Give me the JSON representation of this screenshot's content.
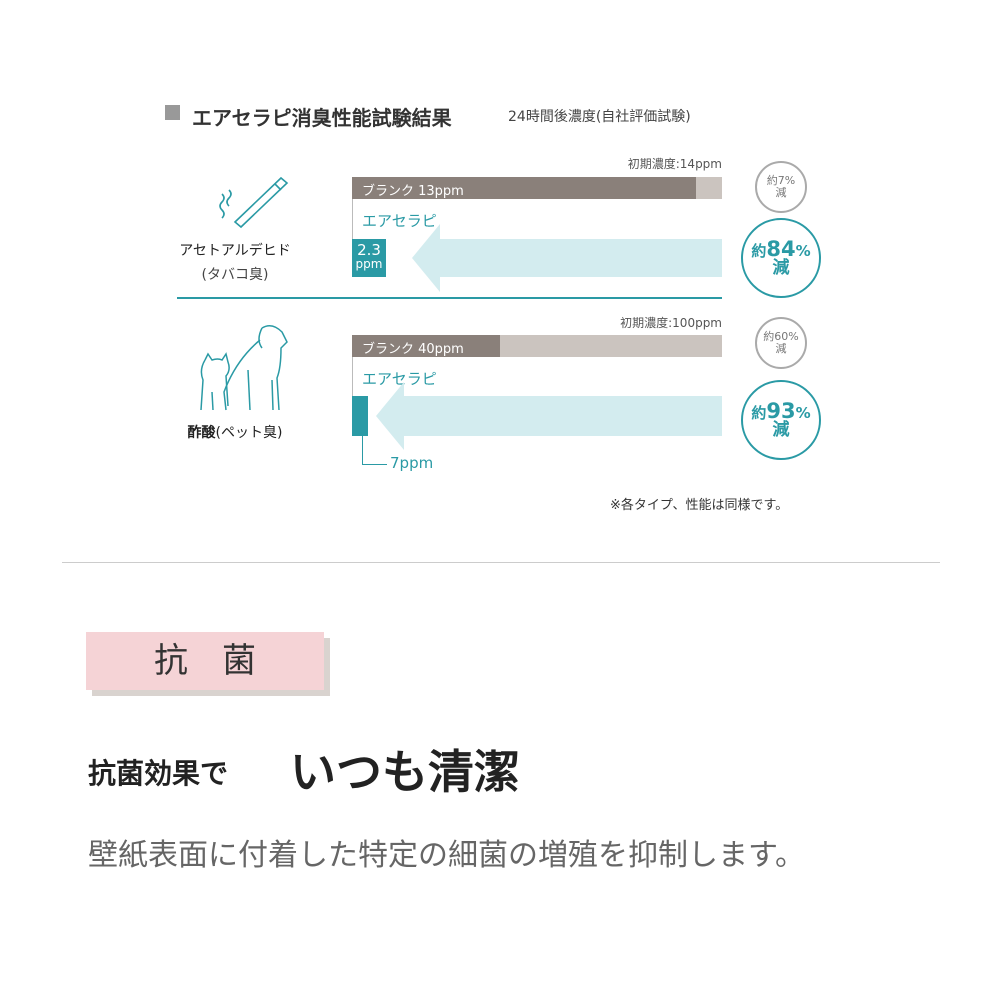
{
  "header": {
    "title": "エアセラピ消臭性能試験結果",
    "subtitle": "24時間後濃度(自社評価試験)"
  },
  "chart_data": {
    "type": "bar",
    "title": "エアセラピ消臭性能試験結果",
    "subtitle": "24時間後濃度(自社評価試験)",
    "unit": "ppm",
    "categories": [
      {
        "name": "アセトアルデヒド",
        "sub": "(タバコ臭)",
        "icon": "cigarette-icon",
        "initial_label": "初期濃度:14ppm",
        "initial": 14,
        "blank_label": "ブランク 13ppm",
        "blank": 13,
        "product_label": "エアセラピ",
        "product": 2.3,
        "product_value": "2.3",
        "product_unit": "ppm",
        "blank_reduction": {
          "prefix": "約",
          "value": "7%",
          "suffix": "減"
        },
        "product_reduction": {
          "prefix": "約",
          "value": "84",
          "pct": "%",
          "suffix": "減"
        }
      },
      {
        "name": "酢酸",
        "sub": "(ペット臭)",
        "icon": "pet-icon",
        "initial_label": "初期濃度:100ppm",
        "initial": 100,
        "blank_label": "ブランク 40ppm",
        "blank": 40,
        "product_label": "エアセラピ",
        "product": 7,
        "product_value": "7ppm",
        "blank_reduction": {
          "prefix": "約",
          "value": "60%",
          "suffix": "減"
        },
        "product_reduction": {
          "prefix": "約",
          "value": "93",
          "pct": "%",
          "suffix": "減"
        }
      }
    ],
    "note": "※各タイプ、性能は同様です。",
    "colors": {
      "blank": "#8a807a",
      "initial": "#cbc4bf",
      "product": "#2a9aa5",
      "arrow": "#d3ecef"
    }
  },
  "section": {
    "label": "抗　菌",
    "headline_small": "抗菌効果で",
    "headline_large": "いつも清潔",
    "body": "壁紙表面に付着した特定の細菌の増殖を抑制します。",
    "label_bg": "#f5d3d6"
  }
}
